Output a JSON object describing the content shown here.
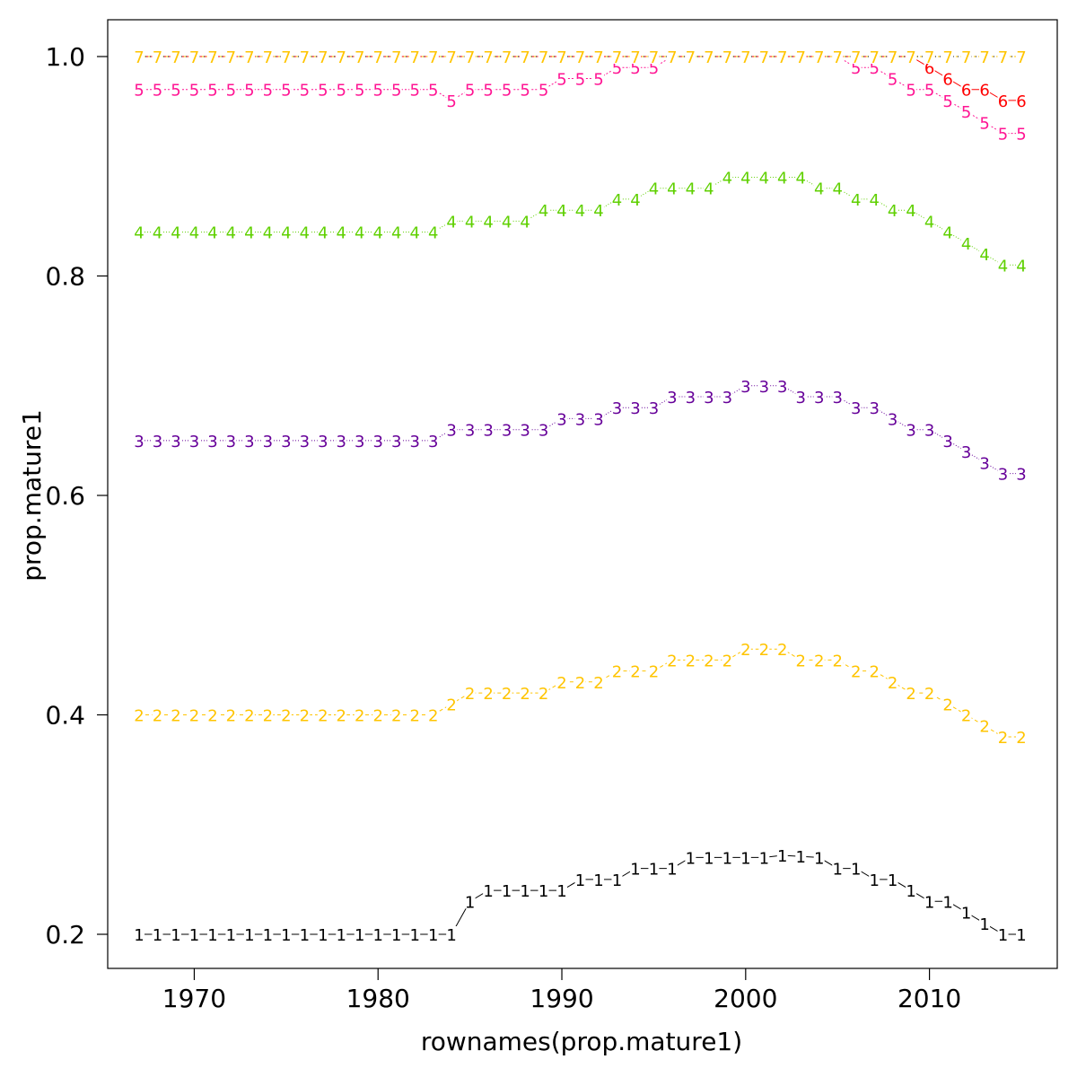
{
  "chart_data": {
    "type": "line",
    "title": "",
    "xlabel": "rownames(prop.mature1)",
    "ylabel": "prop.mature1",
    "xlim": [
      1967,
      2015
    ],
    "ylim": [
      0.2,
      1.0
    ],
    "x_ticks": [
      1970,
      1980,
      1990,
      2000,
      2010
    ],
    "y_ticks": [
      "0.2",
      "0.4",
      "0.6",
      "0.8",
      "1.0"
    ],
    "grid": false,
    "plot_symbols": "series number drawn as text at each point",
    "x": [
      1967,
      1968,
      1969,
      1970,
      1971,
      1972,
      1973,
      1974,
      1975,
      1976,
      1977,
      1978,
      1979,
      1980,
      1981,
      1982,
      1983,
      1984,
      1985,
      1986,
      1987,
      1988,
      1989,
      1990,
      1991,
      1992,
      1993,
      1994,
      1995,
      1996,
      1997,
      1998,
      1999,
      2000,
      2001,
      2002,
      2003,
      2004,
      2005,
      2006,
      2007,
      2008,
      2009,
      2010,
      2011,
      2012,
      2013,
      2014,
      2015
    ],
    "series": [
      {
        "label": "1",
        "color": "#000000",
        "dash": "",
        "values": [
          0.2,
          0.2,
          0.2,
          0.2,
          0.2,
          0.2,
          0.2,
          0.2,
          0.2,
          0.2,
          0.2,
          0.2,
          0.2,
          0.2,
          0.2,
          0.2,
          0.2,
          0.2,
          0.23,
          0.24,
          0.24,
          0.24,
          0.24,
          0.24,
          0.25,
          0.25,
          0.25,
          0.26,
          0.26,
          0.26,
          0.27,
          0.27,
          0.27,
          0.27,
          0.27,
          0.272,
          0.271,
          0.27,
          0.26,
          0.26,
          0.25,
          0.25,
          0.24,
          0.23,
          0.23,
          0.22,
          0.21,
          0.2,
          0.2
        ]
      },
      {
        "label": "2",
        "color": "#FFC400",
        "dash": "4,3",
        "values": [
          0.4,
          0.4,
          0.4,
          0.4,
          0.4,
          0.4,
          0.4,
          0.4,
          0.4,
          0.4,
          0.4,
          0.4,
          0.4,
          0.4,
          0.4,
          0.4,
          0.4,
          0.41,
          0.42,
          0.42,
          0.42,
          0.42,
          0.42,
          0.43,
          0.43,
          0.43,
          0.44,
          0.44,
          0.44,
          0.45,
          0.45,
          0.45,
          0.45,
          0.46,
          0.46,
          0.46,
          0.45,
          0.45,
          0.45,
          0.44,
          0.44,
          0.43,
          0.42,
          0.42,
          0.41,
          0.4,
          0.39,
          0.38,
          0.38
        ]
      },
      {
        "label": "3",
        "color": "#660099",
        "dash": "1,2",
        "values": [
          0.65,
          0.65,
          0.65,
          0.65,
          0.65,
          0.65,
          0.65,
          0.65,
          0.65,
          0.65,
          0.65,
          0.65,
          0.65,
          0.65,
          0.65,
          0.65,
          0.65,
          0.66,
          0.66,
          0.66,
          0.66,
          0.66,
          0.66,
          0.67,
          0.67,
          0.67,
          0.68,
          0.68,
          0.68,
          0.69,
          0.69,
          0.69,
          0.69,
          0.7,
          0.7,
          0.7,
          0.69,
          0.69,
          0.69,
          0.68,
          0.68,
          0.67,
          0.66,
          0.66,
          0.65,
          0.64,
          0.63,
          0.62,
          0.62
        ]
      },
      {
        "label": "4",
        "color": "#5FD000",
        "dash": "1,2",
        "values": [
          0.84,
          0.84,
          0.84,
          0.84,
          0.84,
          0.84,
          0.84,
          0.84,
          0.84,
          0.84,
          0.84,
          0.84,
          0.84,
          0.84,
          0.84,
          0.84,
          0.84,
          0.85,
          0.85,
          0.85,
          0.85,
          0.85,
          0.86,
          0.86,
          0.86,
          0.86,
          0.87,
          0.87,
          0.88,
          0.88,
          0.88,
          0.88,
          0.89,
          0.89,
          0.89,
          0.89,
          0.89,
          0.88,
          0.88,
          0.87,
          0.87,
          0.86,
          0.86,
          0.85,
          0.84,
          0.83,
          0.82,
          0.81,
          0.81
        ]
      },
      {
        "label": "5",
        "color": "#FF1493",
        "dash": "2,2",
        "values": [
          0.97,
          0.97,
          0.97,
          0.97,
          0.97,
          0.97,
          0.97,
          0.97,
          0.97,
          0.97,
          0.97,
          0.97,
          0.97,
          0.97,
          0.97,
          0.97,
          0.97,
          0.96,
          0.97,
          0.97,
          0.97,
          0.97,
          0.97,
          0.98,
          0.98,
          0.98,
          0.99,
          0.99,
          0.99,
          1.0,
          1.0,
          1.0,
          1.0,
          1.0,
          1.0,
          1.0,
          1.0,
          1.0,
          1.0,
          0.99,
          0.99,
          0.98,
          0.97,
          0.97,
          0.96,
          0.95,
          0.94,
          0.93,
          0.93
        ]
      },
      {
        "label": "6",
        "color": "#FF0000",
        "dash": "",
        "values": [
          1.0,
          1.0,
          1.0,
          1.0,
          1.0,
          1.0,
          1.0,
          1.0,
          1.0,
          1.0,
          1.0,
          1.0,
          1.0,
          1.0,
          1.0,
          1.0,
          1.0,
          1.0,
          1.0,
          1.0,
          1.0,
          1.0,
          1.0,
          1.0,
          1.0,
          1.0,
          1.0,
          1.0,
          1.0,
          1.0,
          1.0,
          1.0,
          1.0,
          1.0,
          1.0,
          1.0,
          1.0,
          1.0,
          1.0,
          1.0,
          1.0,
          1.0,
          1.0,
          0.99,
          0.98,
          0.97,
          0.97,
          0.96,
          0.96
        ]
      },
      {
        "label": "7",
        "color": "#000000",
        "dash": "3,2",
        "values": [
          1.0,
          1.0,
          1.0,
          1.0,
          1.0,
          1.0,
          1.0,
          1.0,
          1.0,
          1.0,
          1.0,
          1.0,
          1.0,
          1.0,
          1.0,
          1.0,
          1.0,
          1.0,
          1.0,
          1.0,
          1.0,
          1.0,
          1.0,
          1.0,
          1.0,
          1.0,
          1.0,
          1.0,
          1.0,
          1.0,
          1.0,
          1.0,
          1.0,
          1.0,
          1.0,
          1.0,
          1.0,
          1.0,
          1.0,
          1.0,
          1.0,
          1.0,
          1.0,
          1.0,
          1.0,
          1.0,
          1.0,
          1.0,
          1.0
        ]
      },
      {
        "label": "7",
        "color": "#FFC400",
        "dash": "2,3",
        "values": [
          1.0,
          1.0,
          1.0,
          1.0,
          1.0,
          1.0,
          1.0,
          1.0,
          1.0,
          1.0,
          1.0,
          1.0,
          1.0,
          1.0,
          1.0,
          1.0,
          1.0,
          1.0,
          1.0,
          1.0,
          1.0,
          1.0,
          1.0,
          1.0,
          1.0,
          1.0,
          1.0,
          1.0,
          1.0,
          1.0,
          1.0,
          1.0,
          1.0,
          1.0,
          1.0,
          1.0,
          1.0,
          1.0,
          1.0,
          1.0,
          1.0,
          1.0,
          1.0,
          1.0,
          1.0,
          1.0,
          1.0,
          1.0,
          1.0
        ]
      }
    ]
  }
}
